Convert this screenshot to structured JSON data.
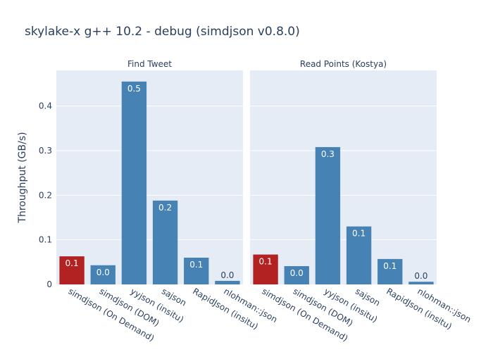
{
  "chart_data": {
    "type": "bar",
    "title": "skylake-x g++ 10.2 - debug (simdjson v0.8.0)",
    "ylabel": "Throughput (GB/s)",
    "ylim": [
      0,
      0.48
    ],
    "yticks": [
      0,
      0.1,
      0.2,
      0.3,
      0.4
    ],
    "ytick_labels": [
      "0",
      "0.1",
      "0.2",
      "0.3",
      "0.4"
    ],
    "grid": true,
    "colors": {
      "highlight": "#b22222",
      "default": "#4682b4",
      "panel_bg": "#e5ecf6"
    },
    "categories": [
      "simdjson (On Demand)",
      "simdjson (DOM)",
      "yyjson (insitu)",
      "sajson",
      "RapidJson (insitu)",
      "nlohman::json"
    ],
    "facets": [
      {
        "name": "Find Tweet",
        "values": [
          0.063,
          0.043,
          0.455,
          0.188,
          0.06,
          0.008
        ],
        "labels": [
          "0.1",
          "0.0",
          "0.5",
          "0.2",
          "0.1",
          "0.0"
        ],
        "highlight": [
          true,
          false,
          false,
          false,
          false,
          false
        ]
      },
      {
        "name": "Read Points (Kostya)",
        "values": [
          0.067,
          0.041,
          0.308,
          0.13,
          0.057,
          0.006
        ],
        "labels": [
          "0.1",
          "0.0",
          "0.3",
          "0.1",
          "0.1",
          "0.0"
        ],
        "highlight": [
          true,
          false,
          false,
          false,
          false,
          false
        ]
      }
    ]
  }
}
